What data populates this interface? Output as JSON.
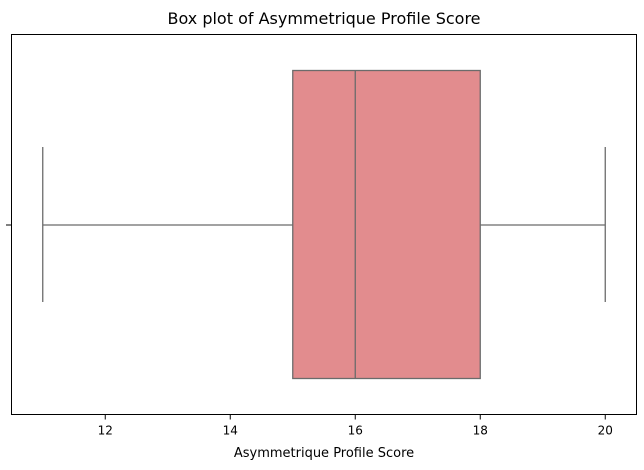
{
  "chart_data": {
    "type": "boxplot",
    "title": "Box plot of Asymmetrique Profile Score",
    "xlabel": "Asymmetrique Profile Score",
    "ylabel": "",
    "orientation": "horizontal",
    "xlim": [
      10.5,
      20.5
    ],
    "xticks": [
      12,
      14,
      16,
      18,
      20
    ],
    "xtick_labels": [
      "12",
      "14",
      "16",
      "18",
      "20"
    ],
    "grid": false,
    "box": {
      "min": 11,
      "q1": 15,
      "median": 16,
      "q3": 18,
      "max": 20
    },
    "colors": {
      "box_fill": "#e28c8e",
      "box_edge": "#6b6b6b",
      "axis": "#000000"
    }
  }
}
